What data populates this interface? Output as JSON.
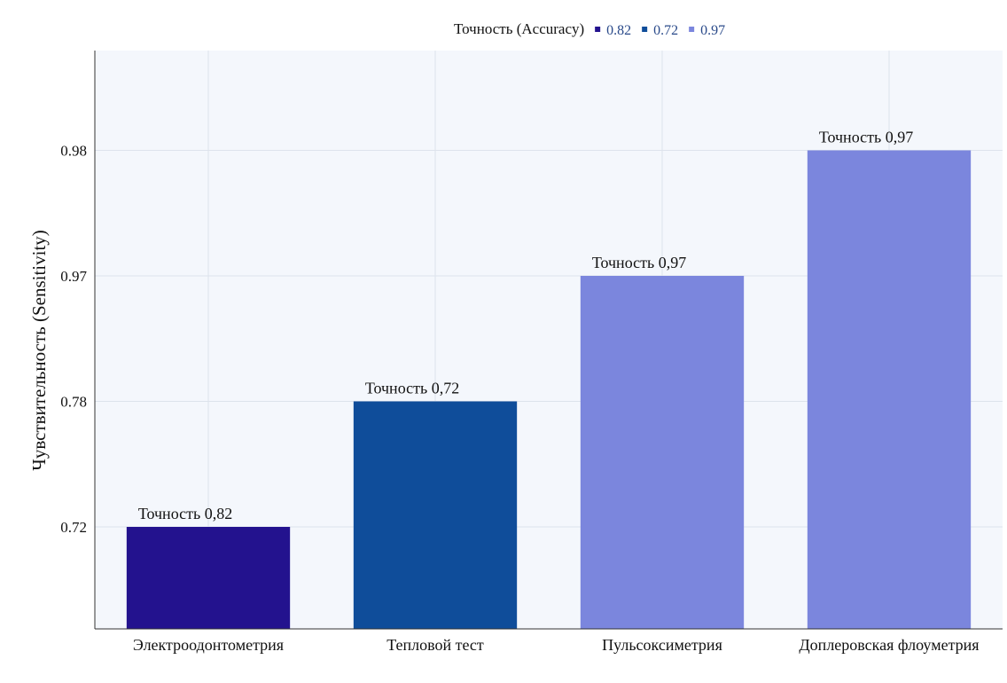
{
  "chart_data": {
    "type": "bar",
    "categories": [
      "Электроодонтометрия",
      "Тепловой тест",
      "Пульсоксиметрия",
      "Доплеровская флоуметрия"
    ],
    "values": [
      0.72,
      0.78,
      0.97,
      0.98
    ],
    "tick_labels": [
      "0.72",
      "0.78",
      "0.97",
      "0.98"
    ],
    "bar_labels": [
      "Точность 0,82",
      "Точность 0,72",
      "Точность 0,97",
      "Точность 0,97"
    ],
    "bar_colors": [
      "#23128e",
      "#0f4d9a",
      "#7b86dd",
      "#7b86dd"
    ],
    "accuracy": [
      0.82,
      0.72,
      0.97,
      0.97
    ],
    "xlabel": "",
    "ylabel": "Чувствительность (Sensitivity)",
    "y_scale": "categorical (tick levels evenly spaced)",
    "grid": true,
    "legend": {
      "title": "Точность (Accuracy)",
      "placement": "top-center",
      "entries": [
        {
          "label": "0.82",
          "color": "#23128e"
        },
        {
          "label": "0.72",
          "color": "#0f4d9a"
        },
        {
          "label": "0.97",
          "color": "#7b86dd"
        }
      ]
    }
  }
}
